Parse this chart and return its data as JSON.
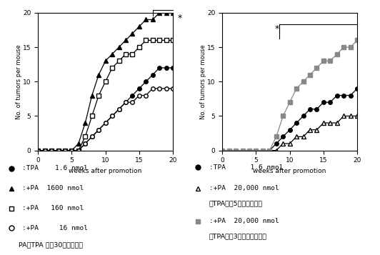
{
  "left_series": [
    {
      "x": [
        0,
        1,
        2,
        3,
        4,
        5,
        6,
        7,
        8,
        9,
        10,
        11,
        12,
        13,
        14,
        15,
        16,
        17,
        18,
        19,
        20
      ],
      "y": [
        0,
        0,
        0,
        0,
        0,
        0,
        0,
        1,
        2,
        3,
        4,
        5,
        6,
        7,
        8,
        9,
        10,
        11,
        12,
        12,
        12
      ],
      "marker": "o",
      "color": "black",
      "filled": true
    },
    {
      "x": [
        0,
        1,
        2,
        3,
        4,
        5,
        6,
        7,
        8,
        9,
        10,
        11,
        12,
        13,
        14,
        15,
        16,
        17,
        18,
        19,
        20
      ],
      "y": [
        0,
        0,
        0,
        0,
        0,
        0,
        1,
        4,
        8,
        11,
        13,
        14,
        15,
        16,
        17,
        18,
        19,
        19,
        20,
        20,
        20
      ],
      "marker": "^",
      "color": "black",
      "filled": true
    },
    {
      "x": [
        0,
        1,
        2,
        3,
        4,
        5,
        6,
        7,
        8,
        9,
        10,
        11,
        12,
        13,
        14,
        15,
        16,
        17,
        18,
        19,
        20
      ],
      "y": [
        0,
        0,
        0,
        0,
        0,
        0,
        0,
        2,
        5,
        8,
        10,
        12,
        13,
        14,
        14,
        15,
        16,
        16,
        16,
        16,
        16
      ],
      "marker": "s",
      "color": "black",
      "filled": false
    },
    {
      "x": [
        0,
        1,
        2,
        3,
        4,
        5,
        6,
        7,
        8,
        9,
        10,
        11,
        12,
        13,
        14,
        15,
        16,
        17,
        18,
        19,
        20
      ],
      "y": [
        0,
        0,
        0,
        0,
        0,
        0,
        0,
        1,
        2,
        3,
        4,
        5,
        6,
        7,
        7,
        8,
        8,
        9,
        9,
        9,
        9
      ],
      "marker": "o",
      "color": "black",
      "filled": false
    }
  ],
  "right_series": [
    {
      "x": [
        0,
        1,
        2,
        3,
        4,
        5,
        6,
        7,
        8,
        9,
        10,
        11,
        12,
        13,
        14,
        15,
        16,
        17,
        18,
        19,
        20
      ],
      "y": [
        0,
        0,
        0,
        0,
        0,
        0,
        0,
        0,
        1,
        2,
        3,
        4,
        5,
        6,
        6,
        7,
        7,
        8,
        8,
        8,
        9
      ],
      "marker": "o",
      "color": "black",
      "filled": true
    },
    {
      "x": [
        0,
        1,
        2,
        3,
        4,
        5,
        6,
        7,
        8,
        9,
        10,
        11,
        12,
        13,
        14,
        15,
        16,
        17,
        18,
        19,
        20
      ],
      "y": [
        0,
        0,
        0,
        0,
        0,
        0,
        0,
        0,
        0,
        1,
        1,
        2,
        2,
        3,
        3,
        4,
        4,
        4,
        5,
        5,
        5
      ],
      "marker": "^",
      "color": "black",
      "filled": false
    },
    {
      "x": [
        0,
        1,
        2,
        3,
        4,
        5,
        6,
        7,
        8,
        9,
        10,
        11,
        12,
        13,
        14,
        15,
        16,
        17,
        18,
        19,
        20
      ],
      "y": [
        0,
        0,
        0,
        0,
        0,
        0,
        0,
        0,
        2,
        5,
        7,
        9,
        10,
        11,
        12,
        13,
        13,
        14,
        15,
        15,
        16
      ],
      "marker": "s",
      "color": "#888888",
      "filled": true
    }
  ],
  "ylim": [
    0,
    20
  ],
  "xlim": [
    0,
    20
  ],
  "yticks": [
    0,
    5,
    10,
    15,
    20
  ],
  "xticks": [
    0,
    5,
    10,
    15,
    20
  ],
  "ylabel": "No. of tumors per mouse",
  "xlabel": "weeks after promotion",
  "markersize": 4,
  "linewidth": 0.9
}
